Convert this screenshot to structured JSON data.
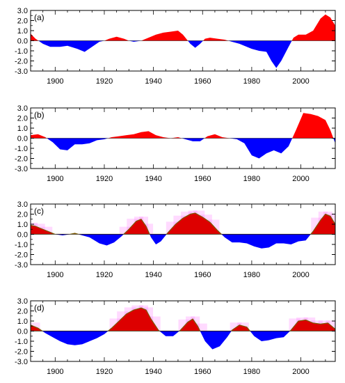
{
  "chart_data": [
    {
      "type": "area",
      "panel_label": "(a)",
      "xlim": [
        1890,
        2014
      ],
      "ylim": [
        -3.0,
        3.0
      ],
      "yticks": [
        "3.0",
        "2.0",
        "1.0",
        "0.0",
        "-1.0",
        "-2.0",
        "-3.0"
      ],
      "xticks": [
        "1900",
        "1920",
        "1940",
        "1960",
        "1980",
        "2000"
      ],
      "positive_color": "#ff0000",
      "negative_color": "#0000ff",
      "highlight": false,
      "x": [
        1890,
        1892,
        1895,
        1898,
        1902,
        1905,
        1909,
        1912,
        1915,
        1918,
        1920,
        1922,
        1925,
        1928,
        1930,
        1932,
        1935,
        1938,
        1941,
        1944,
        1947,
        1950,
        1952,
        1955,
        1957,
        1959,
        1961,
        1963,
        1966,
        1969,
        1972,
        1975,
        1978,
        1980,
        1983,
        1986,
        1988,
        1990,
        1992,
        1995,
        1997,
        1999,
        2002,
        2005,
        2008,
        2010,
        2012,
        2014
      ],
      "y": [
        0.7,
        0.2,
        -0.3,
        -0.6,
        -0.6,
        -0.5,
        -0.8,
        -1.1,
        -0.6,
        -0.1,
        0.0,
        0.2,
        0.4,
        0.2,
        0.0,
        -0.1,
        0.0,
        0.3,
        0.6,
        0.8,
        0.9,
        1.0,
        0.6,
        -0.3,
        -0.7,
        -0.3,
        0.2,
        0.3,
        0.2,
        0.1,
        -0.1,
        -0.3,
        -0.6,
        -0.8,
        -1.0,
        -1.1,
        -2.0,
        -2.7,
        -2.0,
        -0.6,
        0.3,
        0.6,
        0.6,
        1.0,
        2.2,
        2.6,
        2.3,
        1.5
      ]
    },
    {
      "type": "area",
      "panel_label": "(b)",
      "xlim": [
        1890,
        2014
      ],
      "ylim": [
        -3.0,
        3.0
      ],
      "yticks": [
        "3.0",
        "2.0",
        "1.0",
        "0.0",
        "-1.0",
        "-2.0",
        "-3.0"
      ],
      "xticks": [
        "1900",
        "1920",
        "1940",
        "1960",
        "1980",
        "2000"
      ],
      "positive_color": "#ff0000",
      "negative_color": "#0000ff",
      "highlight": false,
      "x": [
        1890,
        1893,
        1896,
        1899,
        1902,
        1905,
        1908,
        1911,
        1914,
        1917,
        1920,
        1923,
        1926,
        1929,
        1932,
        1935,
        1938,
        1941,
        1944,
        1947,
        1950,
        1953,
        1956,
        1959,
        1962,
        1965,
        1968,
        1971,
        1974,
        1977,
        1980,
        1983,
        1986,
        1989,
        1992,
        1995,
        1998,
        2001,
        2004,
        2007,
        2010,
        2012,
        2014
      ],
      "y": [
        0.3,
        0.4,
        0.1,
        -0.4,
        -1.1,
        -1.2,
        -0.6,
        -0.6,
        -0.5,
        -0.2,
        -0.1,
        0.1,
        0.2,
        0.3,
        0.4,
        0.6,
        0.7,
        0.3,
        0.1,
        0.0,
        0.1,
        -0.1,
        -0.3,
        -0.3,
        0.2,
        0.4,
        0.1,
        0.0,
        -0.1,
        -0.5,
        -1.7,
        -2.0,
        -1.5,
        -1.2,
        -1.5,
        -0.8,
        0.8,
        2.5,
        2.4,
        2.2,
        1.8,
        0.8,
        -0.5
      ]
    },
    {
      "type": "area",
      "panel_label": "(c)",
      "xlim": [
        1890,
        2014
      ],
      "ylim": [
        -3.0,
        3.0
      ],
      "yticks": [
        "3.0",
        "2.0",
        "1.0",
        "0.0",
        "-1.0",
        "-2.0",
        "-3.0"
      ],
      "xticks": [
        "1900",
        "1920",
        "1940",
        "1960",
        "1980",
        "2000"
      ],
      "positive_color": "#dd0000",
      "negative_color": "#0000ff",
      "highlight": true,
      "highlight_color": "#ff55ff",
      "x": [
        1890,
        1892,
        1895,
        1898,
        1900,
        1903,
        1906,
        1908,
        1911,
        1914,
        1918,
        1921,
        1924,
        1927,
        1930,
        1933,
        1935,
        1937,
        1939,
        1941,
        1943,
        1946,
        1949,
        1952,
        1955,
        1957,
        1960,
        1963,
        1966,
        1969,
        1972,
        1975,
        1978,
        1981,
        1984,
        1987,
        1990,
        1993,
        1996,
        1999,
        2002,
        2005,
        2008,
        2010,
        2012,
        2014
      ],
      "y": [
        0.9,
        0.8,
        0.5,
        0.2,
        0.0,
        -0.1,
        0.0,
        0.1,
        -0.1,
        -0.3,
        -0.9,
        -1.1,
        -0.8,
        -0.2,
        0.5,
        1.3,
        1.5,
        0.8,
        -0.3,
        -1.0,
        -0.7,
        0.2,
        1.0,
        1.6,
        2.0,
        2.1,
        1.7,
        1.2,
        0.4,
        -0.3,
        -0.8,
        -0.8,
        -0.9,
        -1.2,
        -1.4,
        -1.3,
        -0.9,
        -0.9,
        -1.0,
        -0.7,
        -0.6,
        0.3,
        1.4,
        2.0,
        1.8,
        1.0
      ]
    },
    {
      "type": "area",
      "panel_label": "(d)",
      "xlim": [
        1890,
        2014
      ],
      "ylim": [
        -3.0,
        3.0
      ],
      "yticks": [
        "3.0",
        "2.0",
        "1.0",
        "0.0",
        "-1.0",
        "-2.0",
        "-3.0"
      ],
      "xticks": [
        "1900",
        "1920",
        "1940",
        "1960",
        "1980",
        "2000"
      ],
      "positive_color": "#dd0000",
      "negative_color": "#0000ff",
      "highlight": true,
      "highlight_color": "#ff55ff",
      "x": [
        1890,
        1893,
        1896,
        1899,
        1902,
        1905,
        1908,
        1911,
        1914,
        1917,
        1920,
        1923,
        1926,
        1929,
        1932,
        1935,
        1937,
        1939,
        1942,
        1945,
        1948,
        1951,
        1954,
        1956,
        1958,
        1961,
        1964,
        1967,
        1970,
        1972,
        1975,
        1978,
        1981,
        1984,
        1987,
        1990,
        1993,
        1996,
        1999,
        2002,
        2005,
        2008,
        2011,
        2014
      ],
      "y": [
        0.6,
        0.3,
        -0.2,
        -0.6,
        -1.0,
        -1.3,
        -1.4,
        -1.3,
        -1.0,
        -0.7,
        -0.3,
        0.3,
        1.0,
        1.7,
        2.1,
        2.3,
        2.1,
        1.2,
        0.1,
        -0.5,
        -0.5,
        0.1,
        0.9,
        1.2,
        0.5,
        -1.0,
        -1.8,
        -1.5,
        -0.6,
        0.1,
        0.6,
        0.4,
        -0.5,
        -1.0,
        -0.9,
        -0.7,
        -0.6,
        0.1,
        1.0,
        1.1,
        0.8,
        0.7,
        0.8,
        0.2
      ]
    }
  ]
}
